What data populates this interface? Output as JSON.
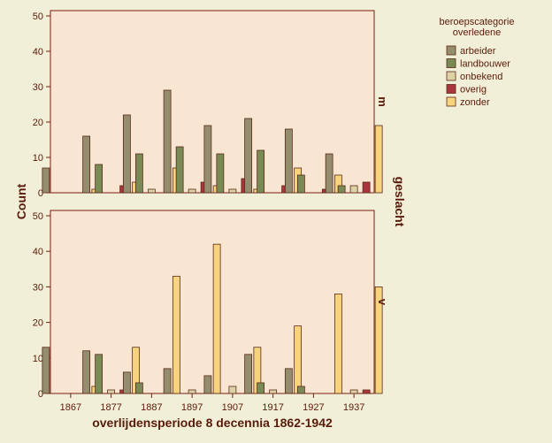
{
  "chart_data": {
    "type": "bar",
    "xlabel": "overlijdensperiode 8 decennia 1862-1942",
    "ylabel": "Count",
    "facet_label": "geslacht",
    "ylim": [
      0,
      52
    ],
    "yticks": [
      0,
      10,
      20,
      30,
      40,
      50
    ],
    "categories": [
      "1867",
      "1877",
      "1887",
      "1897",
      "1907",
      "1917",
      "1927",
      "1937"
    ],
    "legend": {
      "title_lines": [
        "beroepscategorie",
        "overledene"
      ],
      "placement": "top-right outside"
    },
    "series": [
      {
        "name": "arbeider",
        "color": "#948d6e"
      },
      {
        "name": "landbouwer",
        "color": "#7a8a55"
      },
      {
        "name": "onbekend",
        "color": "#ddd2a6"
      },
      {
        "name": "overig",
        "color": "#a8363c"
      },
      {
        "name": "zonder",
        "color": "#f6d37c"
      }
    ],
    "panels": [
      {
        "label": "m",
        "values": {
          "arbeider": [
            7,
            16,
            22,
            29,
            19,
            21,
            18,
            11
          ],
          "landbouwer": [
            0,
            8,
            11,
            13,
            11,
            12,
            5,
            2
          ],
          "onbekend": [
            0,
            0,
            1,
            1,
            1,
            0,
            0,
            2
          ],
          "overig": [
            0,
            2,
            0,
            3,
            4,
            2,
            1,
            3
          ],
          "zonder": [
            1,
            3,
            7,
            2,
            1,
            7,
            5,
            19
          ]
        }
      },
      {
        "label": "v",
        "values": {
          "arbeider": [
            13,
            12,
            6,
            7,
            5,
            11,
            7,
            0
          ],
          "landbouwer": [
            0,
            11,
            3,
            0,
            0,
            3,
            2,
            0
          ],
          "onbekend": [
            0,
            1,
            0,
            1,
            2,
            1,
            0,
            1
          ],
          "overig": [
            0,
            1,
            0,
            0,
            0,
            0,
            0,
            1
          ],
          "zonder": [
            2,
            13,
            33,
            42,
            13,
            19,
            28,
            30
          ]
        }
      }
    ],
    "grid": false
  }
}
